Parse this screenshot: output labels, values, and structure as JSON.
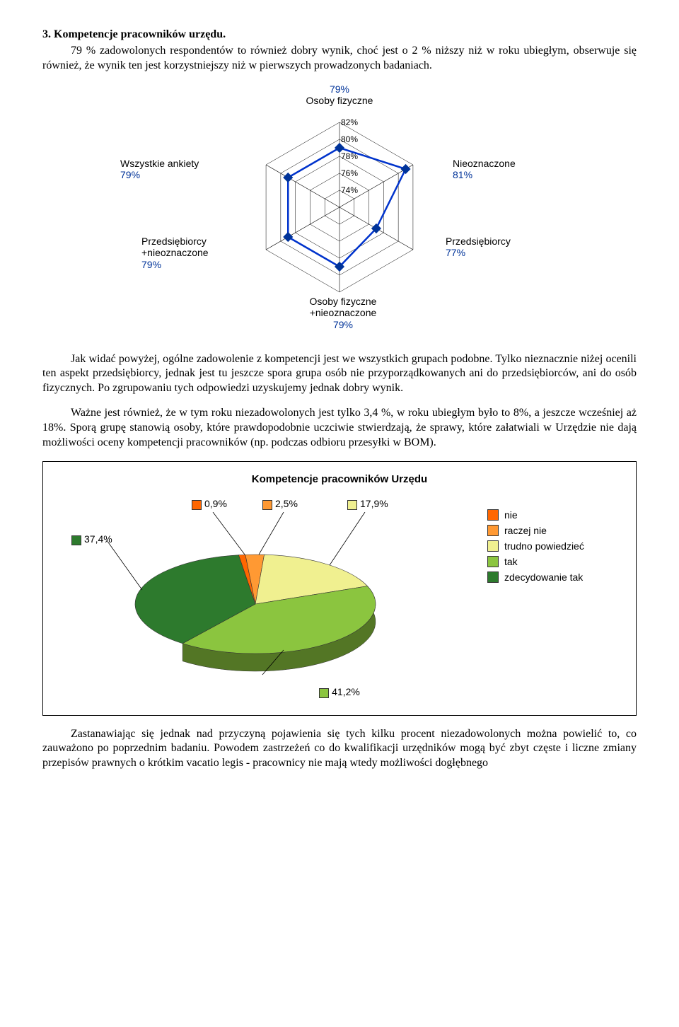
{
  "heading": "3.   Kompetencje pracowników urzędu.",
  "para1": "79 % zadowolonych respondentów to również dobry wynik, choć jest o 2 % niższy niż w roku ubiegłym, obserwuje się również, że wynik ten jest korzystniejszy niż w pierwszych prowadzonych badaniach.",
  "radar": {
    "type": "radar",
    "axes": [
      {
        "label": "Osoby fizyczne",
        "value": "79%",
        "key": "osoby_fiz",
        "short": "79%"
      },
      {
        "label": "Nieoznaczone",
        "value": "81%",
        "key": "nieozn"
      },
      {
        "label": "Przedsiębiorcy",
        "value": "77%",
        "key": "przeds"
      },
      {
        "label": "Osoby fizyczne +nieoznaczone",
        "value": "79%",
        "key": "osoby_nie"
      },
      {
        "label": "Przedsiębiorcy +nieoznaczone",
        "value": "79%",
        "key": "przeds_nie"
      },
      {
        "label": "Wszystkie ankiety",
        "value": "79%",
        "key": "wszystkie"
      }
    ],
    "ticks": [
      "82%",
      "80%",
      "78%",
      "76%",
      "74%"
    ],
    "line_color": "#0033cc",
    "marker_color": "#003399",
    "axis_color": "#000000",
    "max": 82,
    "min": 72
  },
  "para2": "Jak widać powyżej, ogólne zadowolenie z kompetencji jest we wszystkich grupach podobne. Tylko nieznacznie niżej ocenili ten aspekt przedsiębiorcy, jednak jest tu jeszcze spora grupa osób nie przyporządkowanych ani do przedsiębiorców, ani do osób fizycznych. Po zgrupowaniu tych odpowiedzi uzyskujemy jednak dobry wynik.",
  "para3": "Ważne jest również, że w tym roku niezadowolonych jest tylko 3,4 %, w roku ubiegłym było to 8%, a jeszcze wcześniej aż 18%. Sporą grupę stanowią osoby, które prawdopodobnie uczciwie stwierdzają, że sprawy, które załatwiali w Urzędzie nie dają możliwości oceny kompetencji pracowników (np. podczas odbioru przesyłki w BOM).",
  "pie": {
    "type": "pie3d",
    "title": "Kompetencje pracowników Urzędu",
    "slices": [
      {
        "label": "nie",
        "value": 0.9,
        "display": "0,9%",
        "color": "#ff6600"
      },
      {
        "label": "raczej nie",
        "value": 2.5,
        "display": "2,5%",
        "color": "#ff9933"
      },
      {
        "label": "trudno powiedzieć",
        "value": 17.9,
        "display": "17,9%",
        "color": "#f0f090"
      },
      {
        "label": "tak",
        "value": 41.2,
        "display": "41,2%",
        "color": "#8bc53f"
      },
      {
        "label": "zdecydowanie tak",
        "value": 37.4,
        "display": "37,4%",
        "color": "#2d7a2d"
      }
    ],
    "callout_37": "37,4%",
    "callout_41": "41,2%"
  },
  "para4": "Zastanawiając się jednak nad przyczyną pojawienia się tych kilku procent niezadowolonych można powielić to, co zauważono po poprzednim badaniu. Powodem zastrzeżeń co do kwalifikacji urzędników mogą być zbyt częste i liczne zmiany przepisów prawnych o krótkim vacatio legis - pracownicy nie mają wtedy możliwości dogłębnego"
}
